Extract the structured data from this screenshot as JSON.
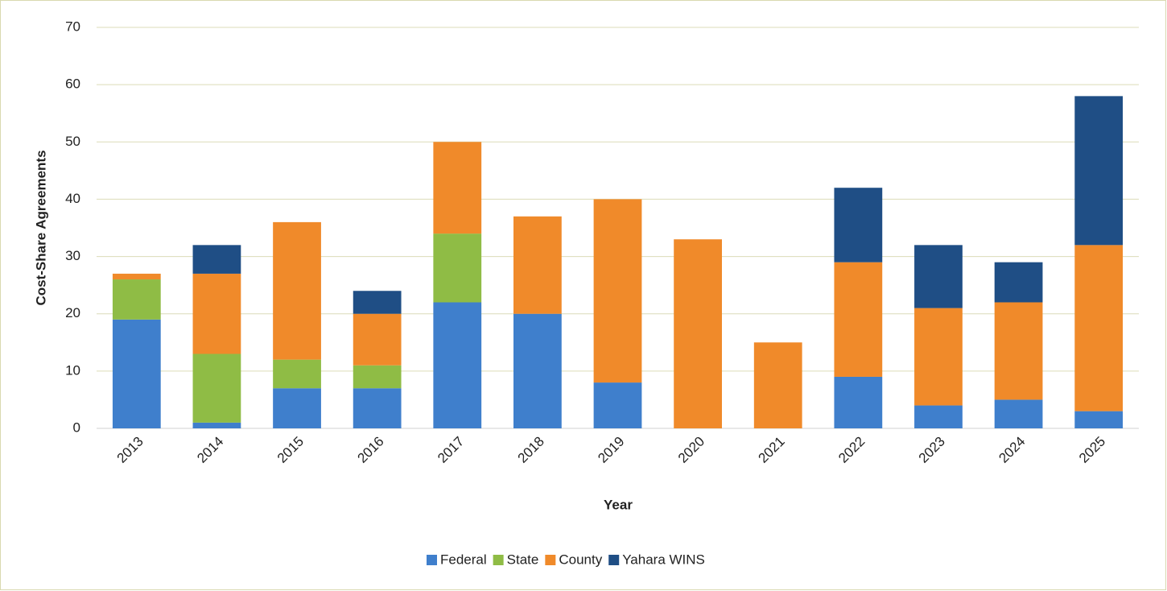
{
  "chart_data": {
    "type": "stacked_bar",
    "x_label": "Year",
    "y_label": "Cost-Share Agreements",
    "categories": [
      "2013",
      "2014",
      "2015",
      "2016",
      "2017",
      "2018",
      "2019",
      "2020",
      "2021",
      "2022",
      "2023",
      "2024",
      "2025"
    ],
    "series": [
      {
        "name": "Federal",
        "color": "#3f7fcc",
        "values": [
          19,
          1,
          7,
          7,
          22,
          20,
          8,
          0,
          0,
          9,
          4,
          5,
          3
        ]
      },
      {
        "name": "State",
        "color": "#8fbc45",
        "values": [
          7,
          12,
          5,
          4,
          12,
          0,
          0,
          0,
          0,
          0,
          0,
          0,
          0
        ]
      },
      {
        "name": "County",
        "color": "#f08a2a",
        "values": [
          1,
          14,
          24,
          9,
          16,
          17,
          32,
          33,
          15,
          20,
          17,
          17,
          29
        ]
      },
      {
        "name": "Yahara WINS",
        "color": "#1f4e85",
        "values": [
          0,
          5,
          0,
          4,
          0,
          0,
          0,
          0,
          0,
          13,
          11,
          7,
          26
        ]
      }
    ],
    "ylim": [
      0,
      70
    ],
    "yticks": [
      0,
      10,
      20,
      30,
      40,
      50,
      60,
      70
    ],
    "grid": true,
    "legend": "bottom"
  }
}
